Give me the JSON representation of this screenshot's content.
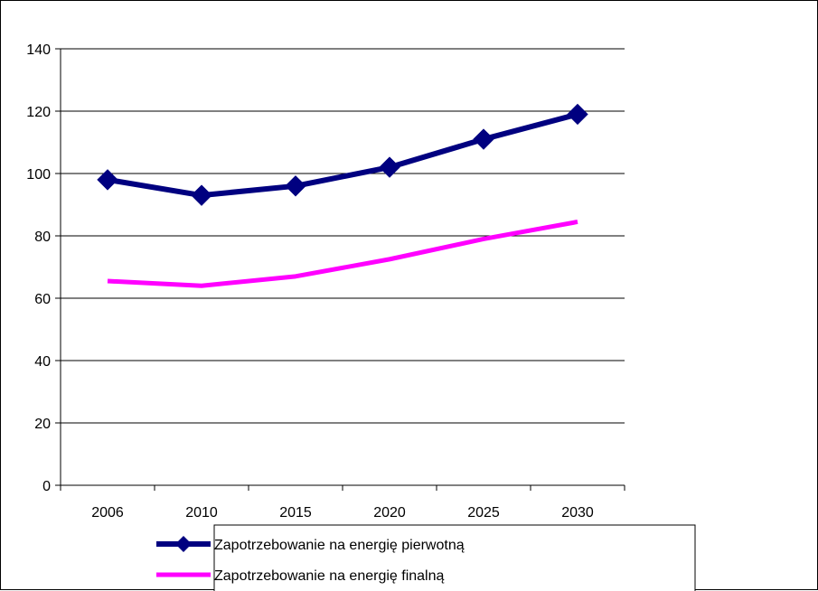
{
  "chart_data": {
    "type": "line",
    "title": "",
    "xlabel": "",
    "ylabel": "",
    "categories": [
      "2006",
      "2010",
      "2015",
      "2020",
      "2025",
      "2030"
    ],
    "ylim": [
      0,
      140
    ],
    "y_ticks": [
      "0",
      "20",
      "40",
      "60",
      "80",
      "100",
      "120",
      "140"
    ],
    "grid": "horizontal",
    "legend_position": "bottom",
    "series": [
      {
        "name": "Zapotrzebowanie na energię pierwotną",
        "values": [
          98,
          93,
          96,
          102,
          111,
          119
        ],
        "color": "#000080",
        "marker": "diamond"
      },
      {
        "name": "Zapotrzebowanie na energię finalną",
        "values": [
          65.5,
          64,
          67,
          72.5,
          79,
          84.5
        ],
        "color": "#FF00FF",
        "marker": "none"
      }
    ]
  }
}
